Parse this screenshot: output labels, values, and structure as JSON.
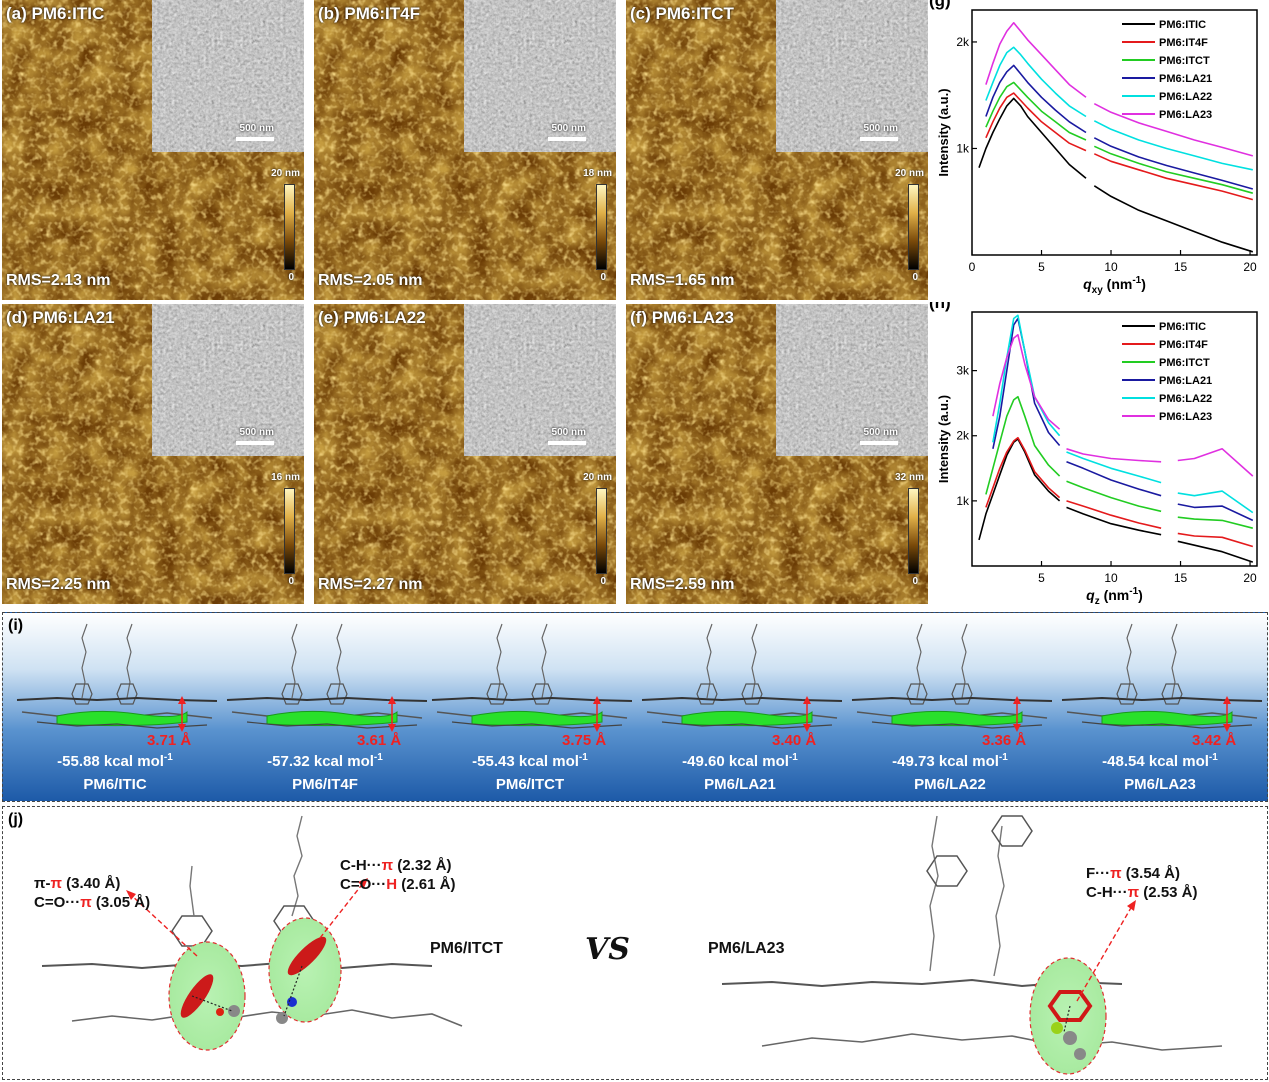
{
  "afm_panels": [
    {
      "label": "(a) PM6:ITIC",
      "rms": "RMS=2.13 nm",
      "scale": "500 nm",
      "cmax": "20 nm",
      "cmin": "0"
    },
    {
      "label": "(b) PM6:IT4F",
      "rms": "RMS=2.05 nm",
      "scale": "500 nm",
      "cmax": "18 nm",
      "cmin": "0"
    },
    {
      "label": "(c) PM6:ITCT",
      "rms": "RMS=1.65 nm",
      "scale": "500 nm",
      "cmax": "20 nm",
      "cmin": "0"
    },
    {
      "label": "(d) PM6:LA21",
      "rms": "RMS=2.25 nm",
      "scale": "500 nm",
      "cmax": "16 nm",
      "cmin": "0"
    },
    {
      "label": "(e) PM6:LA22",
      "rms": "RMS=2.27 nm",
      "scale": "500 nm",
      "cmax": "20 nm",
      "cmin": "0"
    },
    {
      "label": "(f) PM6:LA23",
      "rms": "RMS=2.59 nm",
      "scale": "500 nm",
      "cmax": "32 nm",
      "cmin": "0"
    }
  ],
  "chart_data": [
    {
      "type": "line",
      "panel": "(g)",
      "xlabel_var": "q",
      "xlabel_sub": "xy",
      "xlabel_unit": " (nm",
      "xlabel_exp": "-1",
      "xlabel_end": ")",
      "ylabel": "Intensity (a.u.)",
      "xlim": [
        0,
        20.5
      ],
      "ylim": [
        0,
        2.3
      ],
      "xticks": [
        0,
        5,
        10,
        15,
        20
      ],
      "yticks": [
        {
          "v": 1,
          "t": "1k"
        },
        {
          "v": 2,
          "t": "2k"
        }
      ],
      "gap": [
        8.2,
        8.8
      ],
      "series": [
        {
          "name": "PM6:ITIC",
          "color": "#000000",
          "x": [
            0.5,
            1,
            1.5,
            2,
            2.5,
            3,
            3.5,
            4,
            5,
            6,
            7,
            8.2,
            8.8,
            10,
            12,
            14,
            16,
            18,
            20.2
          ],
          "y": [
            0.82,
            1.0,
            1.15,
            1.28,
            1.4,
            1.47,
            1.4,
            1.3,
            1.15,
            1.0,
            0.85,
            0.72,
            0.65,
            0.55,
            0.42,
            0.32,
            0.22,
            0.12,
            0.03
          ]
        },
        {
          "name": "PM6:IT4F",
          "color": "#e41a1c",
          "x": [
            1,
            1.5,
            2,
            2.5,
            3,
            3.5,
            4,
            5,
            6,
            7,
            8.2,
            8.8,
            10,
            12,
            14,
            16,
            18,
            20.2
          ],
          "y": [
            1.1,
            1.25,
            1.38,
            1.48,
            1.52,
            1.45,
            1.38,
            1.25,
            1.15,
            1.05,
            0.98,
            0.95,
            0.88,
            0.8,
            0.72,
            0.66,
            0.6,
            0.52
          ]
        },
        {
          "name": "PM6:ITCT",
          "color": "#22cc22",
          "x": [
            1,
            1.5,
            2,
            2.5,
            3,
            3.5,
            4,
            5,
            6,
            7,
            8.2,
            8.8,
            10,
            12,
            14,
            16,
            18,
            20.2
          ],
          "y": [
            1.2,
            1.35,
            1.48,
            1.58,
            1.62,
            1.55,
            1.48,
            1.35,
            1.25,
            1.15,
            1.08,
            1.02,
            0.95,
            0.86,
            0.78,
            0.72,
            0.66,
            0.58
          ]
        },
        {
          "name": "PM6:LA21",
          "color": "#1a1aa0",
          "x": [
            1,
            1.5,
            2,
            2.5,
            3,
            3.5,
            4,
            5,
            6,
            7,
            8.2,
            8.8,
            10,
            12,
            14,
            16,
            18,
            20.2
          ],
          "y": [
            1.3,
            1.48,
            1.62,
            1.72,
            1.78,
            1.7,
            1.62,
            1.48,
            1.36,
            1.25,
            1.15,
            1.1,
            1.02,
            0.92,
            0.84,
            0.77,
            0.7,
            0.62
          ]
        },
        {
          "name": "PM6:LA22",
          "color": "#00e0e0",
          "x": [
            1,
            1.5,
            2,
            2.5,
            3,
            3.5,
            4,
            5,
            6,
            7,
            8.2,
            8.8,
            10,
            12,
            14,
            16,
            18,
            20.2
          ],
          "y": [
            1.45,
            1.62,
            1.78,
            1.9,
            1.95,
            1.88,
            1.8,
            1.65,
            1.52,
            1.4,
            1.3,
            1.26,
            1.18,
            1.08,
            1.0,
            0.93,
            0.86,
            0.8
          ]
        },
        {
          "name": "PM6:LA23",
          "color": "#e030e0",
          "x": [
            1,
            1.5,
            2,
            2.5,
            3,
            3.5,
            4,
            5,
            6,
            7,
            8.2,
            8.8,
            10,
            12,
            14,
            16,
            18,
            20.2
          ],
          "y": [
            1.6,
            1.8,
            1.98,
            2.1,
            2.18,
            2.1,
            2.02,
            1.88,
            1.74,
            1.6,
            1.48,
            1.42,
            1.34,
            1.24,
            1.16,
            1.08,
            1.01,
            0.93
          ]
        }
      ]
    },
    {
      "type": "line",
      "panel": "(h)",
      "xlabel_var": "q",
      "xlabel_sub": "z",
      "xlabel_unit": " (nm",
      "xlabel_exp": "-1",
      "xlabel_end": ")",
      "ylabel": "Intensity (a.u.)",
      "xlim": [
        0,
        20.5
      ],
      "ylim": [
        0,
        3.9
      ],
      "xticks": [
        5,
        10,
        15,
        20
      ],
      "yticks": [
        {
          "v": 1,
          "t": "1k"
        },
        {
          "v": 2,
          "t": "2k"
        },
        {
          "v": 3,
          "t": "3k"
        }
      ],
      "gaps": [
        [
          6.3,
          6.8
        ],
        [
          13.6,
          14.8
        ]
      ],
      "series": [
        {
          "name": "PM6:ITIC",
          "color": "#000000",
          "x": [
            0.5,
            1,
            1.5,
            2,
            2.5,
            3,
            3.3,
            3.8,
            4.5,
            5.5,
            6.3,
            6.8,
            8,
            10,
            12,
            13.6,
            14.8,
            16,
            18,
            20.2
          ],
          "y": [
            0.4,
            0.8,
            1.1,
            1.4,
            1.7,
            1.9,
            1.95,
            1.75,
            1.4,
            1.15,
            1.0,
            0.9,
            0.8,
            0.65,
            0.55,
            0.48,
            0.38,
            0.32,
            0.22,
            0.06
          ]
        },
        {
          "name": "PM6:IT4F",
          "color": "#e41a1c",
          "x": [
            1,
            1.5,
            2,
            2.5,
            3,
            3.3,
            3.8,
            4.5,
            5.5,
            6.3,
            6.8,
            8,
            10,
            12,
            13.6,
            14.8,
            16,
            18,
            20.2
          ],
          "y": [
            0.9,
            1.2,
            1.5,
            1.75,
            1.92,
            1.97,
            1.78,
            1.45,
            1.2,
            1.05,
            1.0,
            0.92,
            0.78,
            0.66,
            0.58,
            0.5,
            0.46,
            0.44,
            0.3
          ]
        },
        {
          "name": "PM6:ITCT",
          "color": "#22cc22",
          "x": [
            1,
            1.5,
            2,
            2.5,
            3,
            3.3,
            3.8,
            4.5,
            5.5,
            6.3,
            6.8,
            8,
            10,
            12,
            13.6,
            14.8,
            16,
            18,
            20.2
          ],
          "y": [
            1.1,
            1.5,
            1.9,
            2.3,
            2.55,
            2.6,
            2.3,
            1.85,
            1.55,
            1.38,
            1.3,
            1.2,
            1.05,
            0.92,
            0.84,
            0.75,
            0.72,
            0.7,
            0.58
          ]
        },
        {
          "name": "PM6:LA21",
          "color": "#1a1aa0",
          "x": [
            1.5,
            2,
            2.5,
            3,
            3.3,
            3.8,
            4.5,
            5.5,
            6.3,
            6.8,
            8,
            10,
            12,
            13.6,
            14.8,
            16,
            18,
            20.2
          ],
          "y": [
            1.8,
            2.3,
            3.0,
            3.7,
            3.8,
            3.3,
            2.5,
            2.05,
            1.85,
            1.6,
            1.5,
            1.32,
            1.18,
            1.08,
            0.95,
            0.9,
            0.92,
            0.7
          ]
        },
        {
          "name": "PM6:LA22",
          "color": "#00e0e0",
          "x": [
            1.5,
            2,
            2.5,
            3,
            3.3,
            3.8,
            4.5,
            5.5,
            6.3,
            6.8,
            8,
            10,
            12,
            13.6,
            14.8,
            16,
            18,
            20.2
          ],
          "y": [
            1.9,
            2.5,
            3.2,
            3.8,
            3.85,
            3.3,
            2.6,
            2.2,
            2.0,
            1.75,
            1.65,
            1.5,
            1.38,
            1.28,
            1.12,
            1.08,
            1.15,
            0.82
          ]
        },
        {
          "name": "PM6:LA23",
          "color": "#e030e0",
          "x": [
            1.5,
            2,
            2.5,
            3,
            3.3,
            3.8,
            4.5,
            5.5,
            6.3,
            6.8,
            8,
            10,
            12,
            13.6,
            14.8,
            16,
            18,
            20.2
          ],
          "y": [
            2.3,
            2.8,
            3.2,
            3.5,
            3.55,
            3.1,
            2.6,
            2.25,
            2.1,
            1.8,
            1.72,
            1.65,
            1.62,
            1.6,
            1.62,
            1.65,
            1.8,
            1.38
          ]
        }
      ]
    }
  ],
  "panel_i": {
    "label": "(i)",
    "items": [
      {
        "energy": "-55.88 kcal mol",
        "sup": "-1",
        "pair": "PM6/ITIC",
        "dist": "3.71 Å"
      },
      {
        "energy": "-57.32 kcal mol",
        "sup": "-1",
        "pair": "PM6/IT4F",
        "dist": "3.61 Å"
      },
      {
        "energy": "-55.43 kcal mol",
        "sup": "-1",
        "pair": "PM6/ITCT",
        "dist": "3.75 Å"
      },
      {
        "energy": "-49.60 kcal mol",
        "sup": "-1",
        "pair": "PM6/LA21",
        "dist": "3.40 Å"
      },
      {
        "energy": "-49.73 kcal mol",
        "sup": "-1",
        "pair": "PM6/LA22",
        "dist": "3.36 Å"
      },
      {
        "energy": "-48.54 kcal mol",
        "sup": "-1",
        "pair": "PM6/LA23",
        "dist": "3.42 Å"
      }
    ]
  },
  "panel_j": {
    "label": "(j)",
    "left_ann1_a": "π-",
    "left_ann1_b": "π",
    "left_ann1_c": " (3.40 Å)",
    "left_ann2_a": "C=O···",
    "left_ann2_b": "π",
    "left_ann2_c": " (3.05 Å)",
    "mid_ann1_a": "C-H···",
    "mid_ann1_b": "π",
    "mid_ann1_c": " (2.32 Å)",
    "mid_ann2_a": "C=O···",
    "mid_ann2_b": "H",
    "mid_ann2_c": " (2.61 Å)",
    "right_ann1_a": "F···",
    "right_ann1_b": "π",
    "right_ann1_c": " (3.54 Å)",
    "right_ann2_a": "C-H···",
    "right_ann2_b": "π",
    "right_ann2_c": " (2.53 Å)",
    "left_title": "PM6/ITCT",
    "vs": "VS",
    "right_title": "PM6/LA23"
  }
}
